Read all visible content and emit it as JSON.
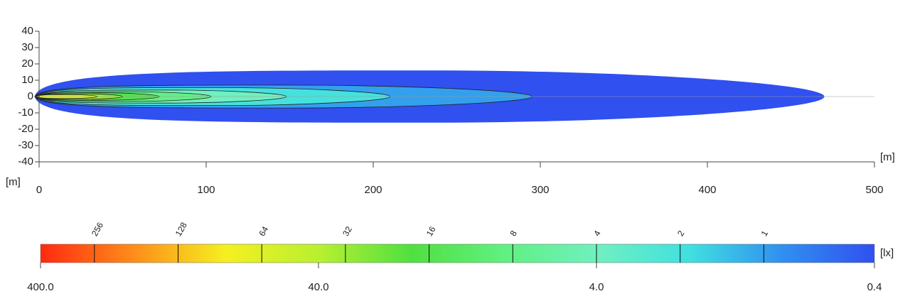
{
  "chart_data": {
    "type": "isolux",
    "xlabel": "[m]",
    "ylabel": "[m]",
    "xlim": [
      0,
      500
    ],
    "xticks": [
      0,
      100,
      200,
      300,
      400,
      500
    ],
    "ylim": [
      -40,
      40
    ],
    "yticks": [
      -40,
      -30,
      -20,
      -10,
      0,
      10,
      20,
      30,
      40
    ],
    "contours": [
      {
        "level": 0.4,
        "reach": 470,
        "half_width": 16
      },
      {
        "level": 1,
        "reach": 295,
        "half_width": 7
      },
      {
        "level": 2,
        "reach": 210,
        "half_width": 5.5
      },
      {
        "level": 4,
        "reach": 148,
        "half_width": 4
      },
      {
        "level": 8,
        "reach": 103,
        "half_width": 3
      },
      {
        "level": 16,
        "reach": 72,
        "half_width": 2.3
      },
      {
        "level": 32,
        "reach": 50,
        "half_width": 1.7
      },
      {
        "level": 64,
        "reach": 35,
        "half_width": 1.2
      }
    ],
    "colorbar": {
      "unit": "[lx]",
      "log_scale": true,
      "lim": [
        400,
        0.4
      ],
      "ticks": [
        {
          "value": 400,
          "label": "400.0"
        },
        {
          "value": 40,
          "label": "40.0"
        },
        {
          "value": 4,
          "label": "4.0"
        },
        {
          "value": 0.4,
          "label": "0.4"
        }
      ],
      "levels": [
        256,
        128,
        64,
        32,
        16,
        8,
        4,
        2,
        1
      ],
      "colors": [
        "#ff2a10",
        "#ff8c1a",
        "#f5f020",
        "#b8f030",
        "#50e040",
        "#60f080",
        "#70f0c0",
        "#40e0e0",
        "#3090f0",
        "#3050f0"
      ]
    }
  }
}
